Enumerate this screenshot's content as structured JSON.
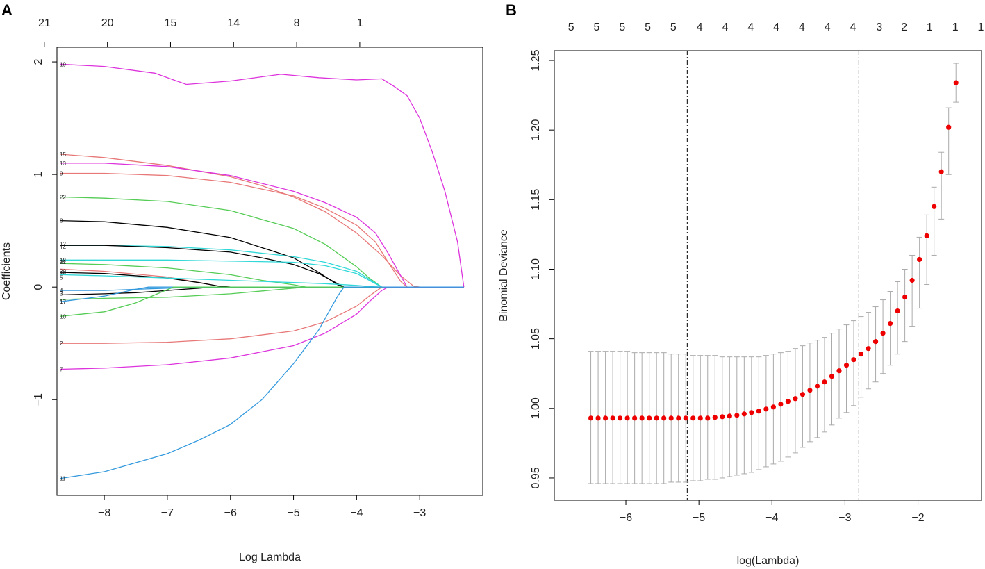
{
  "panels": {
    "a": {
      "label": "A"
    },
    "b": {
      "label": "B"
    }
  },
  "chart_data": [
    {
      "type": "line",
      "title": "",
      "xlabel": "Log Lambda",
      "ylabel": "Coefficients",
      "xlim": [
        -8.75,
        -2.0
      ],
      "ylim": [
        -1.85,
        2.13
      ],
      "xticks": [
        -8,
        -7,
        -6,
        -5,
        -4,
        -3
      ],
      "xtick_labels": [
        "−8",
        "−7",
        "−6",
        "−5",
        "−4",
        "−3"
      ],
      "yticks": [
        -1,
        0,
        1,
        2
      ],
      "ytick_labels": [
        "−1",
        "0",
        "1",
        "2"
      ],
      "top_axis_values": [
        -8.95,
        -7.95,
        -6.95,
        -5.95,
        -4.95,
        -3.95
      ],
      "top_axis_labels": [
        "21",
        "20",
        "15",
        "14",
        "8",
        "1"
      ],
      "series": [
        {
          "name": "19",
          "color": "#dd33dd",
          "x": [
            -8.7,
            -8.0,
            -7.2,
            -6.7,
            -6.0,
            -5.2,
            -4.6,
            -4.0,
            -3.6,
            -3.4,
            -3.2,
            -3.0,
            -2.8,
            -2.6,
            -2.4,
            -2.3
          ],
          "y": [
            1.98,
            1.96,
            1.9,
            1.8,
            1.83,
            1.89,
            1.86,
            1.84,
            1.85,
            1.78,
            1.7,
            1.5,
            1.2,
            0.85,
            0.4,
            0.0
          ]
        },
        {
          "name": "15",
          "color": "#e87878",
          "x": [
            -8.7,
            -8.0,
            -7.0,
            -6.0,
            -5.5,
            -5.0,
            -4.5,
            -4.0,
            -3.6,
            -3.3,
            -3.1,
            -3.0
          ],
          "y": [
            1.18,
            1.15,
            1.08,
            0.98,
            0.9,
            0.8,
            0.67,
            0.48,
            0.28,
            0.1,
            0.01,
            0.0
          ]
        },
        {
          "name": "13",
          "color": "#dd33dd",
          "x": [
            -8.7,
            -8.0,
            -7.0,
            -6.0,
            -5.0,
            -4.5,
            -4.0,
            -3.7,
            -3.5,
            -3.3,
            -3.2
          ],
          "y": [
            1.1,
            1.1,
            1.07,
            0.99,
            0.85,
            0.75,
            0.62,
            0.48,
            0.3,
            0.1,
            0.0
          ]
        },
        {
          "name": "9",
          "color": "#e87878",
          "x": [
            -8.7,
            -8.0,
            -7.0,
            -6.0,
            -5.0,
            -4.5,
            -4.0,
            -3.7,
            -3.5,
            -3.3,
            -3.2
          ],
          "y": [
            1.01,
            1.01,
            0.99,
            0.93,
            0.81,
            0.7,
            0.55,
            0.4,
            0.22,
            0.05,
            0.0
          ]
        },
        {
          "name": "22",
          "color": "#55cc55",
          "x": [
            -8.7,
            -8.0,
            -7.0,
            -6.0,
            -5.0,
            -4.5,
            -4.0,
            -3.8,
            -3.6
          ],
          "y": [
            0.8,
            0.79,
            0.76,
            0.68,
            0.52,
            0.38,
            0.18,
            0.08,
            0.0
          ]
        },
        {
          "name": "8",
          "color": "#000000",
          "x": [
            -8.7,
            -8.0,
            -7.0,
            -6.0,
            -5.0,
            -4.6,
            -4.3,
            -4.2
          ],
          "y": [
            0.59,
            0.58,
            0.53,
            0.44,
            0.26,
            0.13,
            0.02,
            0.0
          ]
        },
        {
          "name": "12",
          "color": "#30d8d8",
          "x": [
            -8.7,
            -8.0,
            -7.0,
            -6.0,
            -5.0,
            -4.5,
            -4.0,
            -3.8,
            -3.6
          ],
          "y": [
            0.37,
            0.37,
            0.36,
            0.33,
            0.27,
            0.22,
            0.14,
            0.07,
            0.0
          ]
        },
        {
          "name": "14",
          "color": "#000000",
          "x": [
            -8.7,
            -8.0,
            -7.0,
            -6.0,
            -5.5,
            -5.0,
            -4.6,
            -4.3,
            -4.2
          ],
          "y": [
            0.37,
            0.37,
            0.35,
            0.31,
            0.26,
            0.2,
            0.12,
            0.03,
            0.0
          ]
        },
        {
          "name": "18",
          "color": "#30d8d8",
          "x": [
            -8.7,
            -8.0,
            -7.0,
            -6.0,
            -5.0,
            -4.5,
            -4.0,
            -3.8,
            -3.6
          ],
          "y": [
            0.24,
            0.24,
            0.24,
            0.23,
            0.22,
            0.19,
            0.12,
            0.06,
            0.0
          ]
        },
        {
          "name": "21",
          "color": "#55cc55",
          "x": [
            -8.7,
            -8.0,
            -7.0,
            -6.0,
            -5.5,
            -5.0,
            -4.8
          ],
          "y": [
            0.21,
            0.2,
            0.17,
            0.11,
            0.06,
            0.02,
            0.0
          ]
        },
        {
          "name": "20",
          "color": "#e87878",
          "x": [
            -8.7,
            -8.0,
            -7.0,
            -6.5,
            -6.2,
            -6.0
          ],
          "y": [
            0.16,
            0.14,
            0.09,
            0.04,
            0.01,
            0.0
          ]
        },
        {
          "name": "16",
          "color": "#000000",
          "x": [
            -8.7,
            -8.0,
            -7.0,
            -6.5,
            -6.2,
            -6.0
          ],
          "y": [
            0.13,
            0.12,
            0.08,
            0.04,
            0.01,
            0.0
          ]
        },
        {
          "name": "5",
          "color": "#30d8d8",
          "x": [
            -8.7,
            -8.0,
            -7.0,
            -6.0,
            -5.0,
            -4.5,
            -4.0,
            -3.8,
            -3.6
          ],
          "y": [
            0.11,
            0.1,
            0.08,
            0.06,
            0.04,
            0.03,
            0.015,
            0.005,
            0.0
          ]
        },
        {
          "name": "4",
          "color": "#3399dd",
          "x": [
            -8.7,
            -8.0,
            -7.5,
            -7.0,
            -6.5
          ],
          "y": [
            -0.03,
            -0.03,
            -0.02,
            -0.01,
            0.0
          ]
        },
        {
          "name": "3",
          "color": "#000000",
          "x": [
            -8.7,
            -8.0,
            -7.5,
            -7.0,
            -6.5,
            -6.3
          ],
          "y": [
            -0.07,
            -0.06,
            -0.05,
            -0.03,
            -0.01,
            0.0
          ]
        },
        {
          "name": "1",
          "color": "#55cc55",
          "x": [
            -8.7,
            -8.0,
            -7.0,
            -6.0,
            -5.0,
            -4.8
          ],
          "y": [
            -0.11,
            -0.1,
            -0.09,
            -0.06,
            -0.01,
            0.0
          ]
        },
        {
          "name": "17",
          "color": "#3399dd",
          "x": [
            -8.7,
            -8.0,
            -7.5,
            -7.3
          ],
          "y": [
            -0.13,
            -0.08,
            -0.02,
            0.0
          ]
        },
        {
          "name": "10",
          "color": "#55cc55",
          "x": [
            -8.7,
            -8.0,
            -7.5,
            -7.2,
            -6.9
          ],
          "y": [
            -0.26,
            -0.22,
            -0.14,
            -0.07,
            0.0
          ]
        },
        {
          "name": "2",
          "color": "#e87878",
          "x": [
            -8.7,
            -8.0,
            -7.0,
            -6.0,
            -5.0,
            -4.5,
            -4.0,
            -3.8,
            -3.6
          ],
          "y": [
            -0.5,
            -0.5,
            -0.49,
            -0.46,
            -0.39,
            -0.31,
            -0.17,
            -0.08,
            0.0
          ]
        },
        {
          "name": "7",
          "color": "#dd33dd",
          "x": [
            -8.7,
            -8.0,
            -7.0,
            -6.0,
            -5.0,
            -4.5,
            -4.0,
            -3.8,
            -3.6,
            -3.5
          ],
          "y": [
            -0.73,
            -0.72,
            -0.69,
            -0.63,
            -0.52,
            -0.41,
            -0.24,
            -0.13,
            -0.03,
            0.0
          ]
        },
        {
          "name": "11",
          "color": "#3399dd",
          "x": [
            -8.7,
            -8.0,
            -7.5,
            -7.0,
            -6.5,
            -6.0,
            -5.5,
            -5.0,
            -4.6,
            -4.3,
            -4.2
          ],
          "y": [
            -1.7,
            -1.64,
            -1.56,
            -1.48,
            -1.36,
            -1.22,
            -1.0,
            -0.68,
            -0.38,
            -0.08,
            0.0
          ]
        }
      ]
    },
    {
      "type": "scatter",
      "title": "",
      "xlabel": "log(Lambda)",
      "ylabel": "Binomial Deviance",
      "xlim": [
        -6.98,
        -1.13
      ],
      "ylim": [
        0.934,
        1.257
      ],
      "xticks": [
        -6,
        -5,
        -4,
        -3,
        -2
      ],
      "xtick_labels": [
        "−6",
        "−5",
        "−4",
        "−3",
        "−2"
      ],
      "yticks": [
        0.95,
        1.0,
        1.05,
        1.1,
        1.15,
        1.2,
        1.25
      ],
      "ytick_labels": [
        "0.95",
        "1.00",
        "1.05",
        "1.10",
        "1.15",
        "1.20",
        "1.25"
      ],
      "top_axis_values": [
        -6.75,
        -6.4,
        -6.05,
        -5.7,
        -5.35,
        -4.99,
        -4.64,
        -4.29,
        -3.94,
        -3.59,
        -3.24,
        -2.89,
        -2.53,
        -2.19,
        -1.84,
        -1.49,
        -1.14
      ],
      "top_axis_labels": [
        "5",
        "5",
        "5",
        "5",
        "5",
        "4",
        "4",
        "4",
        "4",
        "4",
        "4",
        "4",
        "3",
        "2",
        "1",
        "1",
        "1"
      ],
      "vlines": [
        -5.16,
        -2.81
      ],
      "x": [
        -6.48,
        -6.38,
        -6.28,
        -6.18,
        -6.08,
        -5.98,
        -5.88,
        -5.78,
        -5.68,
        -5.58,
        -5.48,
        -5.38,
        -5.28,
        -5.18,
        -5.08,
        -4.98,
        -4.88,
        -4.78,
        -4.68,
        -4.58,
        -4.48,
        -4.38,
        -4.28,
        -4.18,
        -4.08,
        -3.98,
        -3.88,
        -3.78,
        -3.68,
        -3.58,
        -3.48,
        -3.38,
        -3.28,
        -3.18,
        -3.08,
        -2.98,
        -2.88,
        -2.78,
        -2.68,
        -2.58,
        -2.48,
        -2.38,
        -2.28,
        -2.18,
        -2.08,
        -1.98,
        -1.88,
        -1.78,
        -1.68,
        -1.58,
        -1.48
      ],
      "y": [
        0.993,
        0.993,
        0.993,
        0.993,
        0.993,
        0.993,
        0.993,
        0.993,
        0.993,
        0.993,
        0.993,
        0.993,
        0.993,
        0.993,
        0.993,
        0.993,
        0.993,
        0.9935,
        0.994,
        0.9945,
        0.995,
        0.996,
        0.997,
        0.998,
        0.9995,
        1.001,
        1.003,
        1.005,
        1.007,
        1.01,
        1.013,
        1.016,
        1.019,
        1.023,
        1.027,
        1.031,
        1.035,
        1.039,
        1.043,
        1.048,
        1.054,
        1.061,
        1.07,
        1.08,
        1.092,
        1.107,
        1.124,
        1.145,
        1.17,
        1.202,
        1.234
      ],
      "upper": [
        1.041,
        1.041,
        1.041,
        1.041,
        1.041,
        1.041,
        1.04,
        1.04,
        1.04,
        1.04,
        1.04,
        1.039,
        1.039,
        1.039,
        1.038,
        1.038,
        1.038,
        1.038,
        1.037,
        1.037,
        1.037,
        1.037,
        1.037,
        1.037,
        1.038,
        1.039,
        1.04,
        1.041,
        1.043,
        1.045,
        1.047,
        1.049,
        1.051,
        1.054,
        1.057,
        1.06,
        1.063,
        1.066,
        1.069,
        1.073,
        1.078,
        1.084,
        1.091,
        1.1,
        1.11,
        1.123,
        1.139,
        1.159,
        1.184,
        1.216,
        1.248
      ],
      "lower": [
        0.946,
        0.946,
        0.946,
        0.946,
        0.946,
        0.946,
        0.946,
        0.946,
        0.946,
        0.946,
        0.946,
        0.947,
        0.947,
        0.947,
        0.948,
        0.948,
        0.949,
        0.949,
        0.95,
        0.951,
        0.952,
        0.953,
        0.954,
        0.956,
        0.958,
        0.96,
        0.962,
        0.965,
        0.968,
        0.972,
        0.976,
        0.979,
        0.983,
        0.988,
        0.993,
        0.997,
        1.002,
        1.008,
        1.014,
        1.019,
        1.025,
        1.031,
        1.039,
        1.048,
        1.059,
        1.072,
        1.089,
        1.11,
        1.136,
        1.168,
        1.22
      ],
      "point_color": "#ee0000",
      "errorbar_color": "#aaaaaa"
    }
  ]
}
